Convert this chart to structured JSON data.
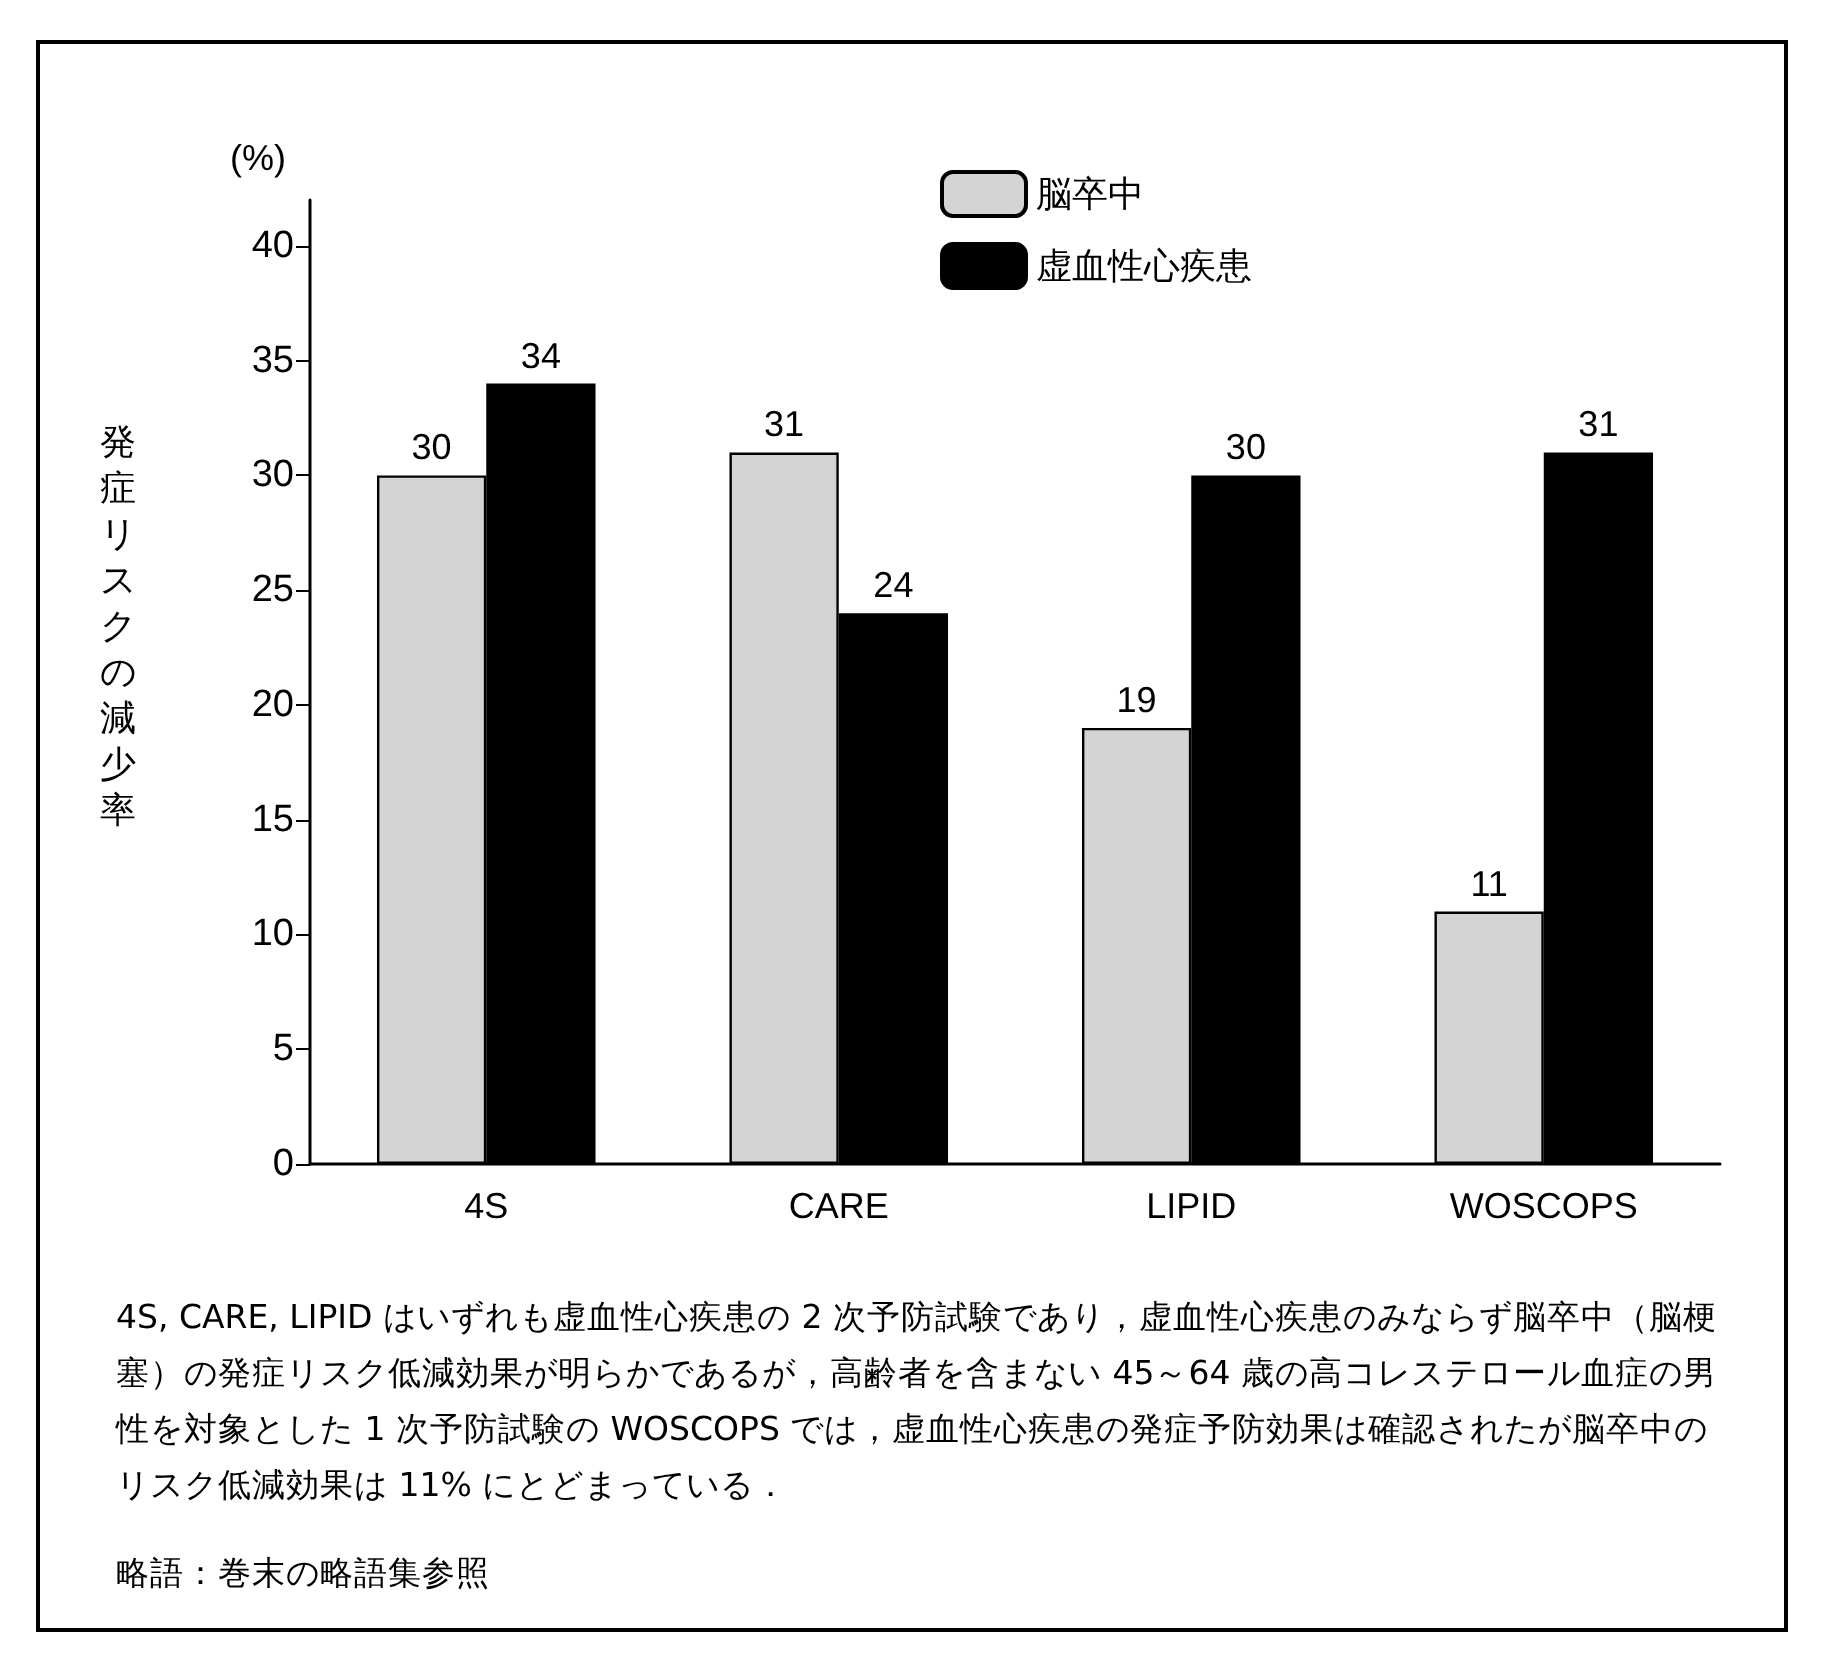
{
  "chart_data": {
    "type": "bar",
    "ylabel": "発症リスクの減少率",
    "categories": [
      "4S",
      "CARE",
      "LIPID",
      "WOSCOPS"
    ],
    "series": [
      {
        "name": "脳卒中",
        "color": "#d4d4d4",
        "values": [
          30,
          31,
          19,
          11
        ]
      },
      {
        "name": "虚血性心疾患",
        "color": "#000000",
        "values": [
          34,
          24,
          30,
          31
        ]
      }
    ],
    "ylim": [
      0,
      42
    ],
    "yticks": [
      0,
      5,
      10,
      15,
      20,
      25,
      30,
      35,
      40
    ],
    "data_labels": true,
    "legend": "top",
    "grid": false,
    "annotations": [
      "(%)",
      "4S, CARE, LIPID はいずれも虚血性心疾患の 2 次予防試験であり，虚血性心疾患のみならず脳卒中（脳梗塞）の発症リスク低減効果が明らかであるが，高齢者を含まない 45～64 歳の高コレステロール血症の男性を対象とした 1 次予防試験の WOSCOPS では，虚血性心疾患の発症予防効果は確認されたが脳卒中のリスク低減効果は 11% にとどまっている．",
      "略語：巻末の略語集参照"
    ]
  }
}
